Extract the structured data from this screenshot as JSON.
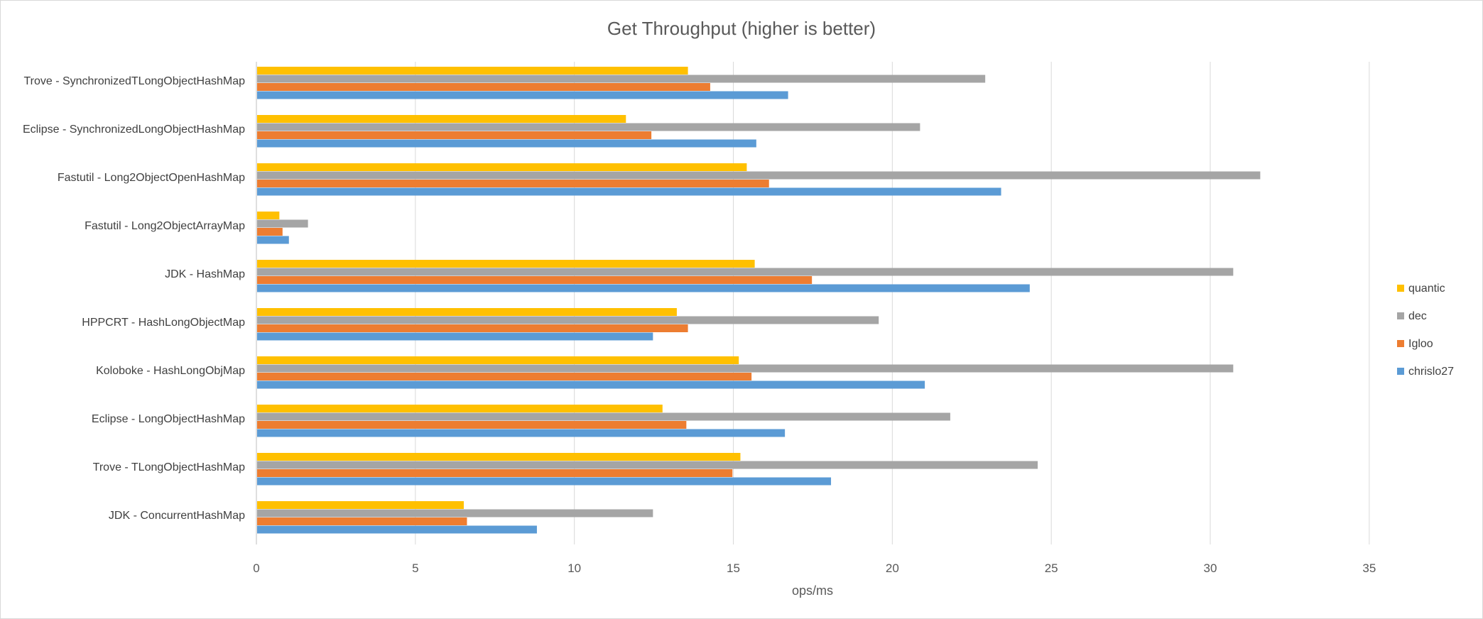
{
  "chart_data": {
    "type": "bar",
    "orientation": "horizontal",
    "title": "Get Throughput (higher is better)",
    "xlabel": "ops/ms",
    "ylabel": "",
    "xlim": [
      0,
      35
    ],
    "xticks": [
      0,
      5,
      10,
      15,
      20,
      25,
      30,
      35
    ],
    "grid": true,
    "legend_position": "right",
    "categories": [
      "Trove - SynchronizedTLongObjectHashMap",
      "Eclipse - SynchronizedLongObjectHashMap",
      "Fastutil - Long2ObjectOpenHashMap",
      "Fastutil - Long2ObjectArrayMap",
      "JDK - HashMap",
      "HPPCRT - HashLongObjectMap",
      "Koloboke - HashLongObjMap",
      "Eclipse - LongObjectHashMap",
      "Trove - TLongObjectHashMap",
      "JDK - ConcurrentHashMap"
    ],
    "series": [
      {
        "name": "quantic",
        "color": "#ffc000",
        "values": [
          13.55,
          11.6,
          15.4,
          0.7,
          15.65,
          13.2,
          15.15,
          12.75,
          15.2,
          6.5
        ]
      },
      {
        "name": "dec",
        "color": "#a5a5a5",
        "values": [
          22.9,
          20.85,
          31.55,
          1.6,
          30.7,
          19.55,
          30.7,
          21.8,
          24.55,
          12.45
        ]
      },
      {
        "name": "Igloo",
        "color": "#ed7d31",
        "values": [
          14.25,
          12.4,
          16.1,
          0.8,
          17.45,
          13.55,
          15.55,
          13.5,
          14.95,
          6.6
        ]
      },
      {
        "name": "chrislo27",
        "color": "#5b9bd5",
        "values": [
          16.7,
          15.7,
          23.4,
          1.0,
          24.3,
          12.45,
          21.0,
          16.6,
          18.05,
          8.8
        ]
      }
    ]
  }
}
